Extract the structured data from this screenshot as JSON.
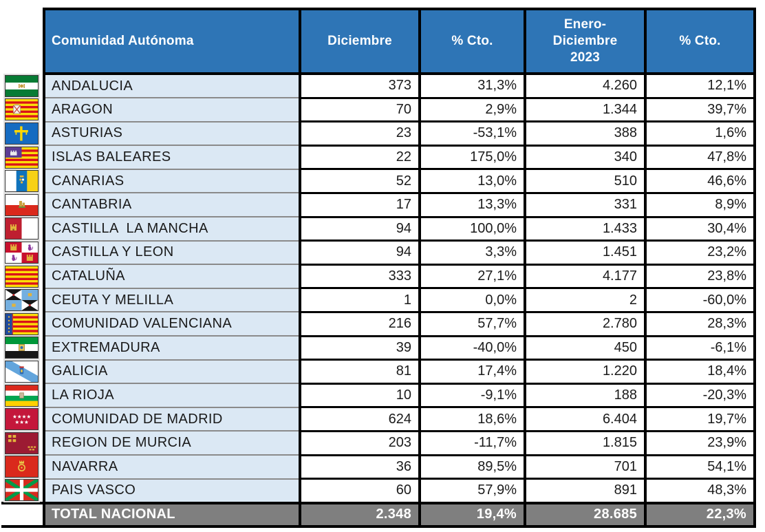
{
  "chart_data": {
    "type": "table",
    "columns": [
      "Comunidad Autónoma",
      "Diciembre",
      "% Cto.",
      "Enero-Diciembre 2023",
      "% Cto."
    ],
    "header": {
      "col1": "Comunidad Autónoma",
      "col2": "Diciembre",
      "col3": "% Cto.",
      "col4": "Enero-\nDiciembre\n2023",
      "col5": "% Cto."
    },
    "rows": [
      {
        "flag_icon": "andalucia-flag-icon",
        "name": "ANDALUCIA",
        "diciembre": "373",
        "pct_cto_mes": "31,3%",
        "enero_diciembre_2023": "4.260",
        "pct_cto_acum": "12,1%"
      },
      {
        "flag_icon": "aragon-flag-icon",
        "name": "ARAGON",
        "diciembre": "70",
        "pct_cto_mes": "2,9%",
        "enero_diciembre_2023": "1.344",
        "pct_cto_acum": "39,7%"
      },
      {
        "flag_icon": "asturias-flag-icon",
        "name": "ASTURIAS",
        "diciembre": "23",
        "pct_cto_mes": "-53,1%",
        "enero_diciembre_2023": "388",
        "pct_cto_acum": "1,6%"
      },
      {
        "flag_icon": "islas-baleares-flag-icon",
        "name": "ISLAS BALEARES",
        "diciembre": "22",
        "pct_cto_mes": "175,0%",
        "enero_diciembre_2023": "340",
        "pct_cto_acum": "47,8%"
      },
      {
        "flag_icon": "canarias-flag-icon",
        "name": "CANARIAS",
        "diciembre": "52",
        "pct_cto_mes": "13,0%",
        "enero_diciembre_2023": "510",
        "pct_cto_acum": "46,6%"
      },
      {
        "flag_icon": "cantabria-flag-icon",
        "name": "CANTABRIA",
        "diciembre": "17",
        "pct_cto_mes": "13,3%",
        "enero_diciembre_2023": "331",
        "pct_cto_acum": "8,9%"
      },
      {
        "flag_icon": "castilla-la-mancha-flag-icon",
        "name": "CASTILLA  LA MANCHA",
        "diciembre": "94",
        "pct_cto_mes": "100,0%",
        "enero_diciembre_2023": "1.433",
        "pct_cto_acum": "30,4%"
      },
      {
        "flag_icon": "castilla-y-leon-flag-icon",
        "name": "CASTILLA Y LEON",
        "diciembre": "94",
        "pct_cto_mes": "3,3%",
        "enero_diciembre_2023": "1.451",
        "pct_cto_acum": "23,2%"
      },
      {
        "flag_icon": "cataluna-flag-icon",
        "name": "CATALUÑA",
        "diciembre": "333",
        "pct_cto_mes": "27,1%",
        "enero_diciembre_2023": "4.177",
        "pct_cto_acum": "23,8%"
      },
      {
        "flag_icon": "ceuta-y-melilla-flag-icon",
        "name": "CEUTA Y MELILLA",
        "diciembre": "1",
        "pct_cto_mes": "0,0%",
        "enero_diciembre_2023": "2",
        "pct_cto_acum": "-60,0%"
      },
      {
        "flag_icon": "comunidad-valenciana-flag-icon",
        "name": "COMUNIDAD VALENCIANA",
        "diciembre": "216",
        "pct_cto_mes": "57,7%",
        "enero_diciembre_2023": "2.780",
        "pct_cto_acum": "28,3%"
      },
      {
        "flag_icon": "extremadura-flag-icon",
        "name": "EXTREMADURA",
        "diciembre": "39",
        "pct_cto_mes": "-40,0%",
        "enero_diciembre_2023": "450",
        "pct_cto_acum": "-6,1%"
      },
      {
        "flag_icon": "galicia-flag-icon",
        "name": "GALICIA",
        "diciembre": "81",
        "pct_cto_mes": "17,4%",
        "enero_diciembre_2023": "1.220",
        "pct_cto_acum": "18,4%"
      },
      {
        "flag_icon": "la-rioja-flag-icon",
        "name": "LA RIOJA",
        "diciembre": "10",
        "pct_cto_mes": "-9,1%",
        "enero_diciembre_2023": "188",
        "pct_cto_acum": "-20,3%"
      },
      {
        "flag_icon": "comunidad-de-madrid-flag-icon",
        "name": "COMUNIDAD DE MADRID",
        "diciembre": "624",
        "pct_cto_mes": "18,6%",
        "enero_diciembre_2023": "6.404",
        "pct_cto_acum": "19,7%"
      },
      {
        "flag_icon": "region-de-murcia-flag-icon",
        "name": "REGION DE MURCIA",
        "diciembre": "203",
        "pct_cto_mes": "-11,7%",
        "enero_diciembre_2023": "1.815",
        "pct_cto_acum": "23,9%"
      },
      {
        "flag_icon": "navarra-flag-icon",
        "name": "NAVARRA",
        "diciembre": "36",
        "pct_cto_mes": "89,5%",
        "enero_diciembre_2023": "701",
        "pct_cto_acum": "54,1%"
      },
      {
        "flag_icon": "pais-vasco-flag-icon",
        "name": "PAIS VASCO",
        "diciembre": "60",
        "pct_cto_mes": "57,9%",
        "enero_diciembre_2023": "891",
        "pct_cto_acum": "48,3%"
      }
    ],
    "total": {
      "name": "TOTAL NACIONAL",
      "diciembre": "2.348",
      "pct_cto_mes": "19,4%",
      "enero_diciembre_2023": "28.685",
      "pct_cto_acum": "22,3%"
    }
  },
  "colors": {
    "header_bg": "#2E75B6",
    "header_text": "#FFFFFF",
    "name_cell_bg": "#DBE8F4",
    "row_separator": "#8A8A8A",
    "data_border": "#000000",
    "total_bg": "#7F7F7F",
    "total_text": "#FFFFFF"
  }
}
